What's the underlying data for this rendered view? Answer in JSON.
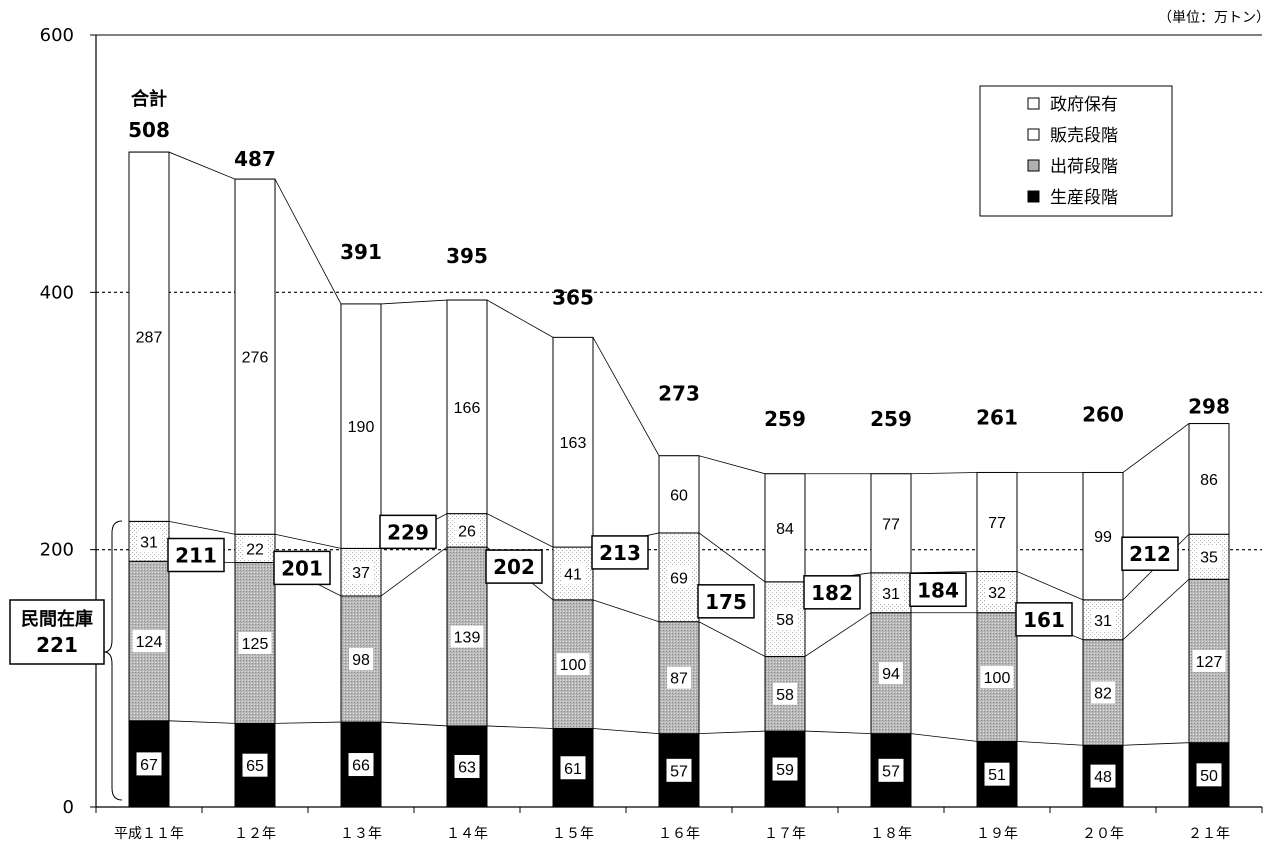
{
  "unit_label": "（単位：万トン）",
  "total_caption": "合計",
  "private_inventory": {
    "label": "民間在庫",
    "value": "221"
  },
  "chart_data": {
    "type": "bar",
    "stacked": true,
    "categories": [
      "平成１１年",
      "１２年",
      "１３年",
      "１４年",
      "１５年",
      "１６年",
      "１７年",
      "１８年",
      "１９年",
      "２０年",
      "２１年"
    ],
    "ylim": [
      0,
      600
    ],
    "yticks": [
      0,
      200,
      400,
      600
    ],
    "grid": "dotted at 200 and 400",
    "legend_position": "top-right",
    "series": [
      {
        "name": "生産段階",
        "values": [
          67,
          65,
          66,
          63,
          61,
          57,
          59,
          57,
          51,
          48,
          50
        ],
        "color": "#000000"
      },
      {
        "name": "出荷段階",
        "values": [
          124,
          125,
          98,
          139,
          100,
          87,
          58,
          94,
          100,
          82,
          127
        ],
        "color": "#bdbdbd"
      },
      {
        "name": "販売段階",
        "values": [
          31,
          22,
          37,
          26,
          41,
          69,
          58,
          31,
          32,
          31,
          35
        ],
        "color": "#f2f2f2"
      },
      {
        "name": "政府保有",
        "values": [
          287,
          276,
          190,
          166,
          163,
          60,
          84,
          77,
          77,
          99,
          86
        ],
        "color": "#ffffff"
      }
    ],
    "totals": [
      508,
      487,
      391,
      395,
      365,
      273,
      259,
      259,
      261,
      260,
      298
    ],
    "private_totals": [
      null,
      211,
      201,
      229,
      202,
      213,
      175,
      182,
      184,
      161,
      212
    ]
  }
}
